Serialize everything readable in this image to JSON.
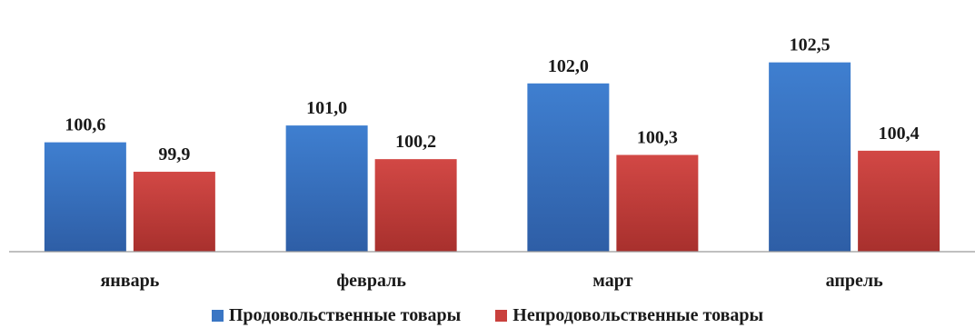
{
  "chart_data": {
    "type": "bar",
    "categories": [
      "январь",
      "февраль",
      "март",
      "апрель"
    ],
    "series": [
      {
        "name": "Продовольственные товары",
        "values": [
          100.6,
          101.0,
          102.0,
          102.5
        ],
        "labels": [
          "100,6",
          "101,0",
          "102,0",
          "102,5"
        ],
        "color": "#3a76c4"
      },
      {
        "name": "Непродовольственные товары",
        "values": [
          99.9,
          100.2,
          100.3,
          100.4
        ],
        "labels": [
          "99,9",
          "100,2",
          "100,3",
          "100,4"
        ],
        "color": "#c9403d"
      }
    ],
    "title": "",
    "xlabel": "",
    "ylabel": "",
    "ylim": [
      98.0,
      103.0
    ],
    "grid": false,
    "legend_position": "bottom"
  }
}
